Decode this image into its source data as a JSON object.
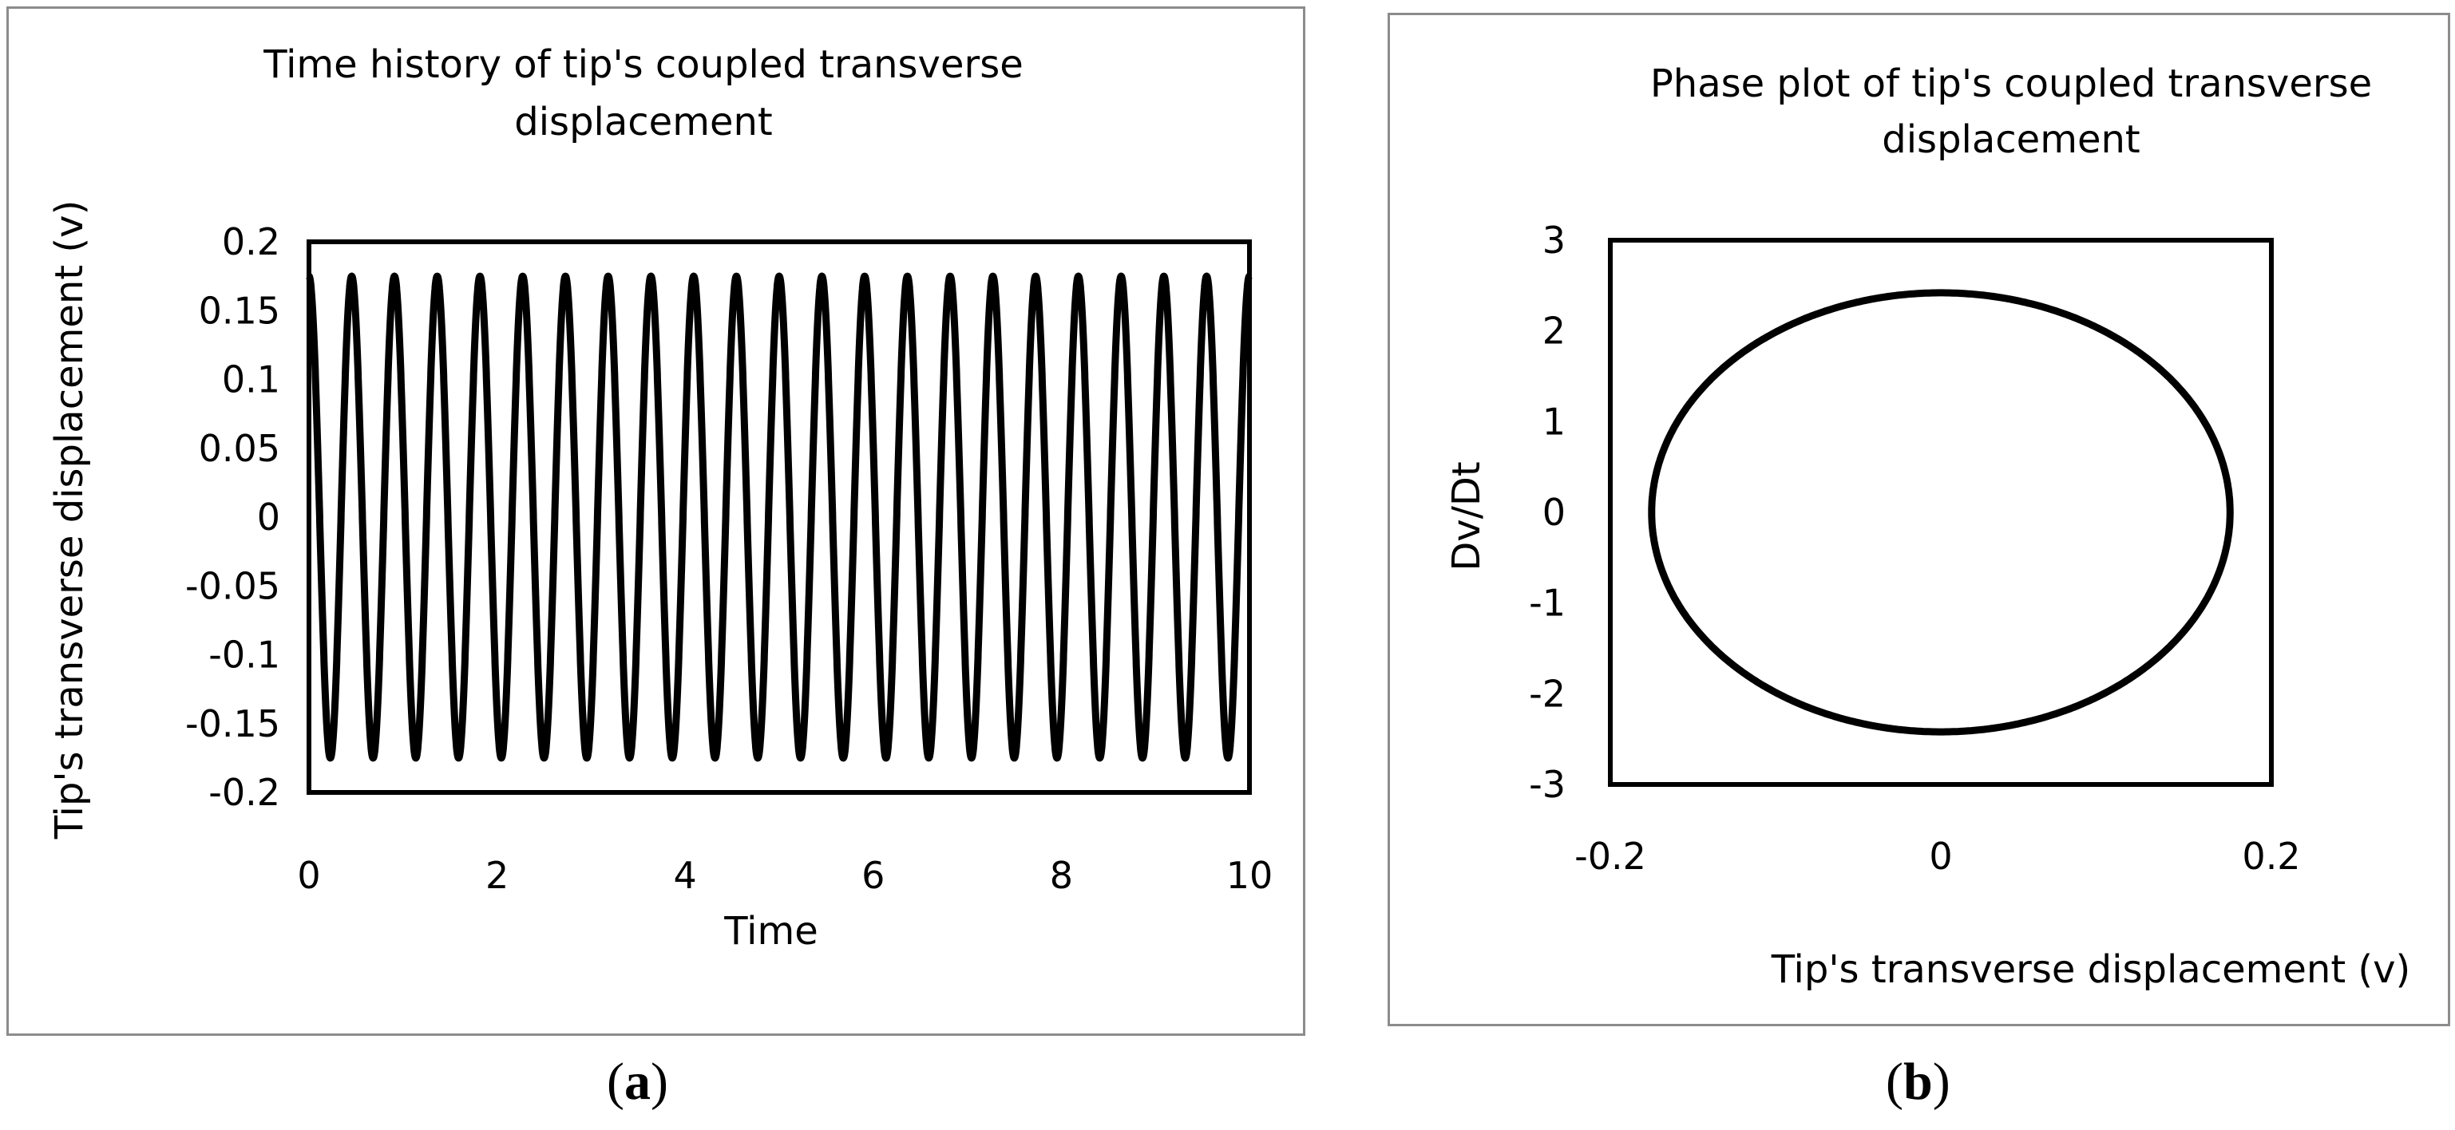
{
  "figure": {
    "caption_a": "a",
    "caption_b": "b"
  },
  "chart_data": [
    {
      "type": "line",
      "title": "Time history of tip's coupled transverse displacement",
      "title_lines": [
        "Time history of tip's coupled transverse",
        "displacement"
      ],
      "xlabel": "Time",
      "ylabel": "Tip's transverse displacement (v)",
      "xlim": [
        0,
        10
      ],
      "ylim": [
        -0.2,
        0.2
      ],
      "x_ticks": [
        "0",
        "2",
        "4",
        "6",
        "8",
        "10"
      ],
      "y_ticks": [
        "0.2",
        "0.15",
        "0.1",
        "0.05",
        "0",
        "-0.05",
        "-0.1",
        "-0.15",
        "-0.2"
      ],
      "grid": false,
      "legend": "none",
      "series": [
        {
          "function": "cosine",
          "amplitude": 0.175,
          "period": 0.4545,
          "x_start": 0,
          "x_end": 10,
          "color": "#000000"
        }
      ]
    },
    {
      "type": "line",
      "title": "Phase plot of tip's coupled transverse displacement",
      "title_lines": [
        "Phase plot of tip's coupled transverse",
        "displacement"
      ],
      "xlabel": "Tip's transverse displacement (v)",
      "ylabel": "Dv/Dt",
      "xlim": [
        -0.2,
        0.2
      ],
      "ylim": [
        -3,
        3
      ],
      "x_ticks": [
        "-0.2",
        "0",
        "0.2"
      ],
      "y_ticks": [
        "3",
        "2",
        "1",
        "0",
        "-1",
        "-2",
        "-3"
      ],
      "grid": false,
      "legend": "none",
      "series": [
        {
          "shape": "closed-orbit",
          "x_amplitude": 0.175,
          "y_amplitude": 2.42,
          "center": [
            0,
            0
          ],
          "color": "#000000"
        }
      ]
    }
  ]
}
